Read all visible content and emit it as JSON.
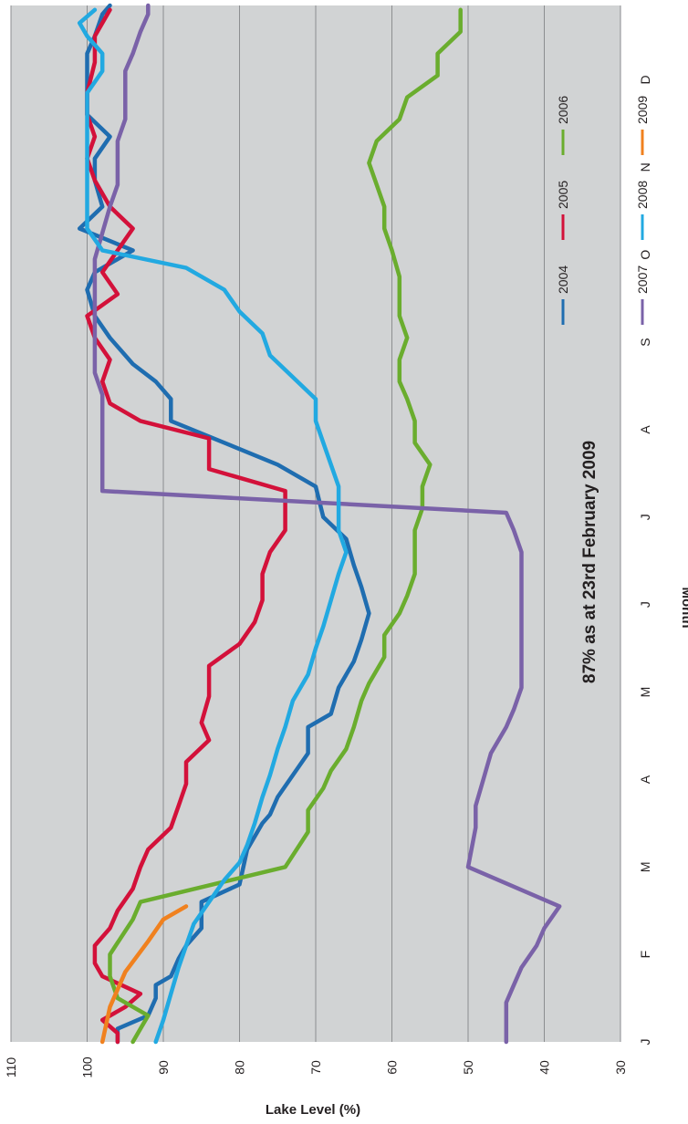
{
  "chart_data": {
    "type": "line",
    "title": "",
    "xlabel": "Month",
    "ylabel": "Lake Level (%)",
    "annotation": "87% as at 23rd February 2009",
    "x_ticks": [
      "J",
      "F",
      "M",
      "A",
      "M",
      "J",
      "J",
      "A",
      "S",
      "O",
      "N",
      "D"
    ],
    "y_ticks": [
      30,
      40,
      50,
      60,
      70,
      80,
      90,
      100,
      110
    ],
    "xlim": [
      1,
      12.85
    ],
    "ylim": [
      30,
      110
    ],
    "grid": true,
    "legend_position": "top-right",
    "plot_background": "#d1d3d4",
    "series": [
      {
        "name": "2004",
        "color": "#1f6db0",
        "points": [
          [
            1,
            96
          ],
          [
            1.15,
            96
          ],
          [
            1.3,
            92
          ],
          [
            1.5,
            91
          ],
          [
            1.65,
            91
          ],
          [
            1.75,
            89
          ],
          [
            1.95,
            88
          ],
          [
            2.1,
            87
          ],
          [
            2.3,
            85
          ],
          [
            2.6,
            85
          ],
          [
            2.8,
            80
          ],
          [
            3.2,
            79
          ],
          [
            3.5,
            77
          ],
          [
            3.6,
            76
          ],
          [
            3.8,
            75
          ],
          [
            4.3,
            71
          ],
          [
            4.6,
            71
          ],
          [
            4.75,
            68
          ],
          [
            5.05,
            67
          ],
          [
            5.35,
            65
          ],
          [
            5.6,
            64
          ],
          [
            5.9,
            63
          ],
          [
            6.2,
            64
          ],
          [
            6.45,
            65
          ],
          [
            6.75,
            66
          ],
          [
            7.0,
            69
          ],
          [
            7.35,
            70
          ],
          [
            7.6,
            75
          ],
          [
            7.85,
            82
          ],
          [
            8.1,
            89
          ],
          [
            8.35,
            89
          ],
          [
            8.55,
            91
          ],
          [
            8.75,
            94
          ],
          [
            9.05,
            97
          ],
          [
            9.3,
            99
          ],
          [
            9.6,
            100
          ],
          [
            9.8,
            99
          ],
          [
            10.05,
            94
          ],
          [
            10.3,
            101
          ],
          [
            10.55,
            98
          ],
          [
            10.85,
            99
          ],
          [
            11.1,
            99
          ],
          [
            11.35,
            97
          ],
          [
            11.6,
            100
          ],
          [
            11.9,
            100
          ],
          [
            12.3,
            100
          ],
          [
            12.5,
            99
          ],
          [
            12.75,
            98
          ],
          [
            12.85,
            97
          ]
        ]
      },
      {
        "name": "2005",
        "color": "#d3113a",
        "points": [
          [
            1,
            96
          ],
          [
            1.1,
            96
          ],
          [
            1.25,
            98
          ],
          [
            1.4,
            95
          ],
          [
            1.55,
            93
          ],
          [
            1.75,
            98
          ],
          [
            1.9,
            99
          ],
          [
            2.1,
            99
          ],
          [
            2.3,
            97
          ],
          [
            2.5,
            96
          ],
          [
            2.75,
            94
          ],
          [
            3.0,
            93
          ],
          [
            3.2,
            92
          ],
          [
            3.45,
            89
          ],
          [
            3.7,
            88
          ],
          [
            3.95,
            87
          ],
          [
            4.2,
            87
          ],
          [
            4.45,
            84
          ],
          [
            4.65,
            85
          ],
          [
            4.95,
            84
          ],
          [
            5.3,
            84
          ],
          [
            5.55,
            80
          ],
          [
            5.8,
            78
          ],
          [
            6.05,
            77
          ],
          [
            6.35,
            77
          ],
          [
            6.6,
            76
          ],
          [
            6.85,
            74
          ],
          [
            7.1,
            74
          ],
          [
            7.3,
            74
          ],
          [
            7.55,
            84
          ],
          [
            7.9,
            84
          ],
          [
            8.1,
            93
          ],
          [
            8.3,
            97
          ],
          [
            8.55,
            98
          ],
          [
            8.8,
            97
          ],
          [
            9.05,
            99
          ],
          [
            9.3,
            100
          ],
          [
            9.55,
            96
          ],
          [
            9.8,
            98
          ],
          [
            10.05,
            96
          ],
          [
            10.3,
            94
          ],
          [
            10.55,
            97
          ],
          [
            10.85,
            99
          ],
          [
            11.1,
            100
          ],
          [
            11.35,
            99
          ],
          [
            11.6,
            100
          ],
          [
            11.85,
            100
          ],
          [
            12.2,
            99
          ],
          [
            12.5,
            99
          ],
          [
            12.8,
            97
          ]
        ]
      },
      {
        "name": "2006",
        "color": "#6aad2e",
        "points": [
          [
            1,
            94
          ],
          [
            1.15,
            93
          ],
          [
            1.3,
            92
          ],
          [
            1.5,
            96
          ],
          [
            1.75,
            97
          ],
          [
            2.0,
            97
          ],
          [
            2.4,
            94
          ],
          [
            2.6,
            93
          ],
          [
            3.0,
            74
          ],
          [
            3.4,
            71
          ],
          [
            3.65,
            71
          ],
          [
            3.9,
            69
          ],
          [
            4.1,
            68
          ],
          [
            4.35,
            66
          ],
          [
            4.6,
            65
          ],
          [
            4.9,
            64
          ],
          [
            5.1,
            63
          ],
          [
            5.4,
            61
          ],
          [
            5.65,
            61
          ],
          [
            5.9,
            59
          ],
          [
            6.1,
            58
          ],
          [
            6.35,
            57
          ],
          [
            6.6,
            57
          ],
          [
            6.85,
            57
          ],
          [
            7.1,
            56
          ],
          [
            7.35,
            56
          ],
          [
            7.6,
            55
          ],
          [
            7.85,
            57
          ],
          [
            8.1,
            57
          ],
          [
            8.35,
            58
          ],
          [
            8.55,
            59
          ],
          [
            8.8,
            59
          ],
          [
            9.05,
            58
          ],
          [
            9.3,
            59
          ],
          [
            9.55,
            59
          ],
          [
            9.75,
            59
          ],
          [
            10.05,
            60
          ],
          [
            10.3,
            61
          ],
          [
            10.55,
            61
          ],
          [
            10.8,
            62
          ],
          [
            11.05,
            63
          ],
          [
            11.3,
            62
          ],
          [
            11.55,
            59
          ],
          [
            11.8,
            58
          ],
          [
            12.05,
            54
          ],
          [
            12.3,
            54
          ],
          [
            12.55,
            51
          ],
          [
            12.8,
            51
          ]
        ]
      },
      {
        "name": "2007",
        "color": "#7a62a8",
        "points": [
          [
            1,
            45
          ],
          [
            1.15,
            45
          ],
          [
            1.45,
            45
          ],
          [
            1.65,
            44
          ],
          [
            1.85,
            43
          ],
          [
            2.1,
            41
          ],
          [
            2.3,
            40
          ],
          [
            2.55,
            38
          ],
          [
            3.0,
            50
          ],
          [
            3.45,
            49
          ],
          [
            3.7,
            49
          ],
          [
            4.0,
            48
          ],
          [
            4.3,
            47
          ],
          [
            4.6,
            45
          ],
          [
            4.8,
            44
          ],
          [
            5.05,
            43
          ],
          [
            5.3,
            43
          ],
          [
            5.6,
            43
          ],
          [
            5.85,
            43
          ],
          [
            6.1,
            43
          ],
          [
            6.35,
            43
          ],
          [
            6.6,
            43
          ],
          [
            6.85,
            44
          ],
          [
            7.05,
            45
          ],
          [
            7.3,
            98
          ],
          [
            7.55,
            98
          ],
          [
            7.85,
            98
          ],
          [
            8.1,
            98
          ],
          [
            8.4,
            98
          ],
          [
            8.65,
            99
          ],
          [
            8.9,
            99
          ],
          [
            9.15,
            99
          ],
          [
            9.4,
            99
          ],
          [
            9.65,
            99
          ],
          [
            9.95,
            99
          ],
          [
            10.25,
            98
          ],
          [
            10.55,
            97
          ],
          [
            10.8,
            96
          ],
          [
            11.05,
            96
          ],
          [
            11.3,
            96
          ],
          [
            11.55,
            95
          ],
          [
            11.8,
            95
          ],
          [
            12.1,
            95
          ],
          [
            12.3,
            94
          ],
          [
            12.55,
            93
          ],
          [
            12.75,
            92
          ],
          [
            12.85,
            92
          ]
        ]
      },
      {
        "name": "2008",
        "color": "#22a9e1",
        "points": [
          [
            1,
            91
          ],
          [
            1.25,
            90
          ],
          [
            1.55,
            89
          ],
          [
            1.85,
            88
          ],
          [
            2.1,
            87
          ],
          [
            2.35,
            86
          ],
          [
            2.6,
            84
          ],
          [
            2.85,
            82
          ],
          [
            3.05,
            80
          ],
          [
            3.25,
            79
          ],
          [
            3.5,
            78
          ],
          [
            3.8,
            77
          ],
          [
            4.05,
            76
          ],
          [
            4.35,
            75
          ],
          [
            4.6,
            74
          ],
          [
            4.9,
            73
          ],
          [
            5.2,
            71
          ],
          [
            5.5,
            70
          ],
          [
            5.75,
            69
          ],
          [
            6.05,
            68
          ],
          [
            6.35,
            67
          ],
          [
            6.6,
            66
          ],
          [
            6.85,
            67
          ],
          [
            7.1,
            67
          ],
          [
            7.35,
            67
          ],
          [
            7.6,
            68
          ],
          [
            7.85,
            69
          ],
          [
            8.1,
            70
          ],
          [
            8.35,
            70
          ],
          [
            8.6,
            73
          ],
          [
            8.85,
            76
          ],
          [
            9.1,
            77
          ],
          [
            9.35,
            80
          ],
          [
            9.6,
            82
          ],
          [
            9.85,
            87
          ],
          [
            10.05,
            98
          ],
          [
            10.3,
            100
          ],
          [
            10.55,
            100
          ],
          [
            10.8,
            100
          ],
          [
            11.05,
            100
          ],
          [
            11.35,
            100
          ],
          [
            11.6,
            100
          ],
          [
            11.85,
            100
          ],
          [
            12.1,
            98
          ],
          [
            12.3,
            98
          ],
          [
            12.5,
            100
          ],
          [
            12.65,
            101
          ],
          [
            12.8,
            99
          ]
        ]
      },
      {
        "name": "2009",
        "color": "#f0811f",
        "points": [
          [
            1,
            98
          ],
          [
            1.4,
            97
          ],
          [
            1.8,
            95
          ],
          [
            2.15,
            92
          ],
          [
            2.4,
            90
          ],
          [
            2.55,
            87
          ]
        ]
      }
    ]
  }
}
